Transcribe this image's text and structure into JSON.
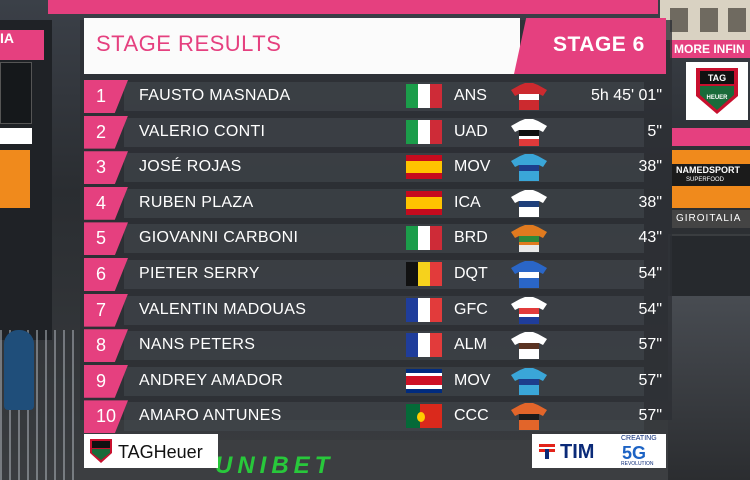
{
  "overlay": {
    "title": "STAGE RESULTS",
    "stage": "STAGE 6"
  },
  "results": [
    {
      "pos": "1",
      "name": "FAUSTO MASNADA",
      "flag": "italy",
      "team": "ANS",
      "time": "5h 45' 01\"",
      "jersey_colors": [
        "#cc2a2f",
        "#ffffff",
        "#cc2a2f"
      ]
    },
    {
      "pos": "2",
      "name": "VALERIO CONTI",
      "flag": "italy",
      "team": "UAD",
      "time": "5\"",
      "jersey_colors": [
        "#ffffff",
        "#111111",
        "#e03a3a"
      ]
    },
    {
      "pos": "3",
      "name": "JOSÉ ROJAS",
      "flag": "spain",
      "team": "MOV",
      "time": "38\"",
      "jersey_colors": [
        "#3aa6d8",
        "#1d3d8c",
        "#3aa6d8"
      ]
    },
    {
      "pos": "4",
      "name": "RUBEN PLAZA",
      "flag": "spain",
      "team": "ICA",
      "time": "38\"",
      "jersey_colors": [
        "#ffffff",
        "#1f3f7a",
        "#ffffff"
      ]
    },
    {
      "pos": "5",
      "name": "GIOVANNI CARBONI",
      "flag": "italy",
      "team": "BRD",
      "time": "43\"",
      "jersey_colors": [
        "#e07a1f",
        "#2f8a3a",
        "#e9e9e9"
      ]
    },
    {
      "pos": "6",
      "name": "PIETER SERRY",
      "flag": "belgium",
      "team": "DQT",
      "time": "54\"",
      "jersey_colors": [
        "#2a66c7",
        "#ffffff",
        "#2a66c7"
      ]
    },
    {
      "pos": "7",
      "name": "VALENTIN MADOUAS",
      "flag": "france",
      "team": "GFC",
      "time": "54\"",
      "jersey_colors": [
        "#ffffff",
        "#e23b3b",
        "#1f3d9b"
      ]
    },
    {
      "pos": "8",
      "name": "NANS PETERS",
      "flag": "france",
      "team": "ALM",
      "time": "57\"",
      "jersey_colors": [
        "#ffffff",
        "#5a3322",
        "#ffffff"
      ]
    },
    {
      "pos": "9",
      "name": "ANDREY AMADOR",
      "flag": "costa_rica",
      "team": "MOV",
      "time": "57\"",
      "jersey_colors": [
        "#3aa6d8",
        "#1d3d8c",
        "#3aa6d8"
      ]
    },
    {
      "pos": "10",
      "name": "AMARO ANTUNES",
      "flag": "portugal",
      "team": "CCC",
      "time": "57\"",
      "jersey_colors": [
        "#e2652a",
        "#1c1c1c",
        "#e2652a"
      ]
    }
  ],
  "sponsors": {
    "left": "TAGHeuer",
    "right": "TIM",
    "right_badge": "5G",
    "right_badge_top": "CREATING",
    "right_badge_bottom": "REVOLUTION"
  },
  "background": {
    "left_sign": "IA",
    "right_banner": "MORE INFIN",
    "named_sport": "NAMEDSPORT",
    "named_sport_sub": "SUPERFOOD",
    "giro_site": "GIROITALIA",
    "road_ad": "UNIBET"
  },
  "colors": {
    "accent": "#e5407f",
    "panel": "#2d3035",
    "header_bg": "#fbfbfb"
  }
}
